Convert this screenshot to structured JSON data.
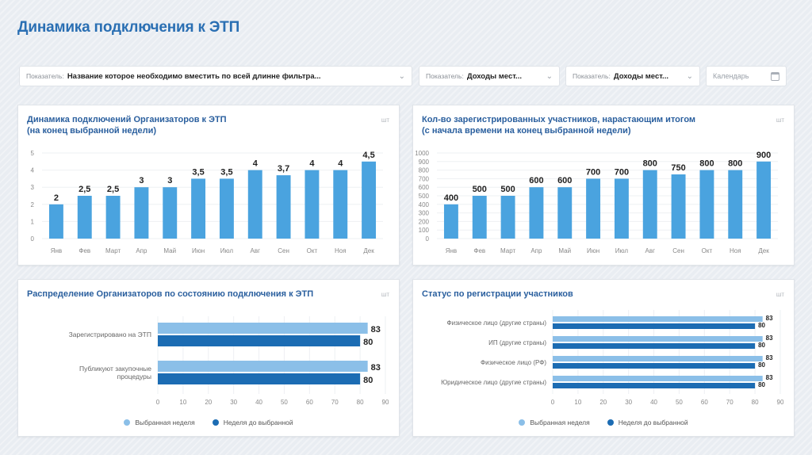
{
  "page": {
    "title": "Динамика подключения к ЭТП"
  },
  "filters": [
    {
      "label": "Показатель:",
      "value": "Название которое необходимо вместить по всей длинне фильтра..."
    },
    {
      "label": "Показатель:",
      "value": "Доходы мест..."
    },
    {
      "label": "Показатель:",
      "value": "Доходы мест..."
    }
  ],
  "calendar": {
    "placeholder": "Календарь"
  },
  "colors": {
    "light": "#8bbfe8",
    "dark": "#1c6cb3",
    "primary": "#4aa3df",
    "title": "#2a6fb3"
  },
  "chart_data": [
    {
      "type": "bar",
      "title": "Динамика подключений Организаторов к ЭТП\n(на конец выбранной недели)",
      "unit": "шт",
      "categories": [
        "Янв",
        "Фев",
        "Март",
        "Апр",
        "Май",
        "Июн",
        "Июл",
        "Авг",
        "Сен",
        "Окт",
        "Ноя",
        "Дек"
      ],
      "values": [
        2,
        2.5,
        2.5,
        3,
        3,
        3.5,
        3.5,
        4,
        3.7,
        4,
        4,
        4.5
      ],
      "labels": [
        "2",
        "2,5",
        "2,5",
        "3",
        "3",
        "3,5",
        "3,5",
        "4",
        "3,7",
        "4",
        "4",
        "4,5"
      ],
      "ylim": [
        0,
        5
      ],
      "yticks": [
        "0",
        "1",
        "2",
        "3",
        "4",
        "5"
      ]
    },
    {
      "type": "bar",
      "title": "Кол-во зарегистрированных участников, нарастающим итогом\n(с начала времени на конец выбранной недели)",
      "unit": "шт",
      "categories": [
        "Янв",
        "Фев",
        "Март",
        "Апр",
        "Май",
        "Июн",
        "Июл",
        "Авг",
        "Сен",
        "Окт",
        "Ноя",
        "Дек"
      ],
      "values": [
        400,
        500,
        500,
        600,
        600,
        700,
        700,
        800,
        750,
        800,
        800,
        900
      ],
      "labels": [
        "400",
        "500",
        "500",
        "600",
        "600",
        "700",
        "700",
        "800",
        "750",
        "800",
        "800",
        "900"
      ],
      "ylim": [
        0,
        1000
      ],
      "yticks": [
        "0",
        "100",
        "200",
        "300",
        "400",
        "500",
        "600",
        "700",
        "800",
        "900",
        "1000"
      ]
    },
    {
      "type": "bar",
      "orientation": "horizontal",
      "title": "Распределение Организаторов по состоянию подключения к ЭТП",
      "unit": "шт",
      "categories": [
        "Зарегистрировано на ЭТП",
        "Публикуют закупочные процедуры"
      ],
      "series": [
        {
          "name": "Выбранная неделя",
          "values": [
            83,
            83
          ]
        },
        {
          "name": "Неделя до выбранной",
          "values": [
            80,
            80
          ]
        }
      ],
      "xlim": [
        0,
        90
      ],
      "xticks": [
        "0",
        "10",
        "20",
        "30",
        "40",
        "50",
        "60",
        "70",
        "80",
        "90"
      ]
    },
    {
      "type": "bar",
      "orientation": "horizontal",
      "title": "Статус по регистрации участников",
      "unit": "шт",
      "categories": [
        "Физическое лицо (другие страны)",
        "ИП (другие страны)",
        "Физическое лицо (РФ)",
        "Юридическое лицо (другие страны)"
      ],
      "series": [
        {
          "name": "Выбранная неделя",
          "values": [
            83,
            83,
            83,
            83
          ]
        },
        {
          "name": "Неделя до выбранной",
          "values": [
            80,
            80,
            80,
            80
          ]
        }
      ],
      "xlim": [
        0,
        90
      ],
      "xticks": [
        "0",
        "10",
        "20",
        "30",
        "40",
        "50",
        "60",
        "70",
        "80",
        "90"
      ]
    }
  ]
}
